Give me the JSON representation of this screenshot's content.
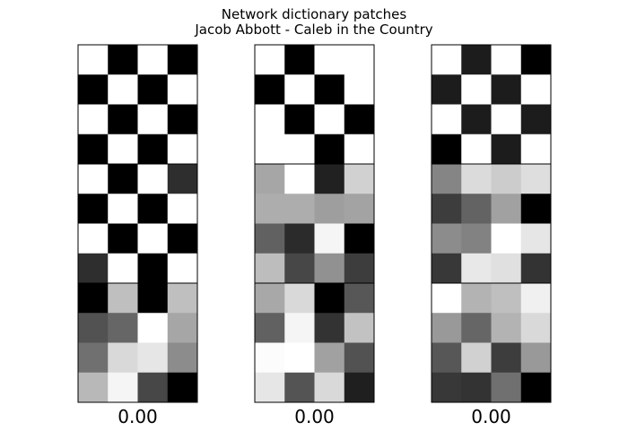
{
  "title": "Network dictionary patches",
  "subtitle": "Jacob Abbott - Caleb in the Country",
  "chart_data": {
    "type": "heatmap",
    "title": "Network dictionary patches",
    "subtitle": "Jacob Abbott - Caleb in the Country",
    "colormap": "gray",
    "value_range": [
      0,
      1
    ],
    "grid": false,
    "panels": [
      {
        "label": "0.00",
        "rows": [
          [
            1.0,
            0.0,
            1.0,
            0.0
          ],
          [
            0.0,
            1.0,
            0.0,
            1.0
          ],
          [
            1.0,
            0.0,
            1.0,
            0.0
          ],
          [
            0.0,
            1.0,
            0.0,
            1.0
          ],
          [
            1.0,
            0.0,
            1.0,
            0.18
          ],
          [
            0.0,
            1.0,
            0.0,
            1.0
          ],
          [
            1.0,
            0.0,
            1.0,
            0.0
          ],
          [
            0.18,
            1.0,
            0.0,
            1.0
          ],
          [
            0.0,
            0.75,
            0.0,
            0.75
          ],
          [
            0.32,
            0.4,
            1.0,
            0.65
          ],
          [
            0.44,
            0.85,
            0.9,
            0.55
          ],
          [
            0.72,
            0.96,
            0.28,
            0.0
          ]
        ]
      },
      {
        "label": "0.00",
        "rows": [
          [
            1.0,
            0.0,
            1.0,
            1.0
          ],
          [
            0.0,
            1.0,
            0.0,
            1.0
          ],
          [
            1.0,
            0.0,
            1.0,
            0.0
          ],
          [
            1.0,
            1.0,
            0.0,
            1.0
          ],
          [
            0.65,
            1.0,
            0.13,
            0.82
          ],
          [
            0.68,
            0.68,
            0.62,
            0.64
          ],
          [
            0.38,
            0.17,
            0.96,
            0.0
          ],
          [
            0.74,
            0.28,
            0.57,
            0.24
          ],
          [
            0.66,
            0.85,
            0.0,
            0.34
          ],
          [
            0.38,
            0.96,
            0.2,
            0.76
          ],
          [
            0.99,
            1.0,
            0.63,
            0.32
          ],
          [
            0.9,
            0.33,
            0.85,
            0.12
          ]
        ]
      },
      {
        "label": "0.00",
        "rows": [
          [
            1.0,
            0.11,
            1.0,
            0.0
          ],
          [
            0.11,
            1.0,
            0.11,
            1.0
          ],
          [
            1.0,
            0.11,
            1.0,
            0.11
          ],
          [
            0.0,
            1.0,
            0.11,
            1.0
          ],
          [
            0.52,
            0.86,
            0.8,
            0.87
          ],
          [
            0.24,
            0.39,
            0.63,
            0.0
          ],
          [
            0.55,
            0.51,
            1.0,
            0.9
          ],
          [
            0.22,
            0.91,
            0.88,
            0.2
          ],
          [
            1.0,
            0.7,
            0.75,
            0.94
          ],
          [
            0.6,
            0.4,
            0.7,
            0.85
          ],
          [
            0.34,
            0.82,
            0.24,
            0.6
          ],
          [
            0.22,
            0.2,
            0.44,
            0.0
          ]
        ]
      }
    ]
  }
}
